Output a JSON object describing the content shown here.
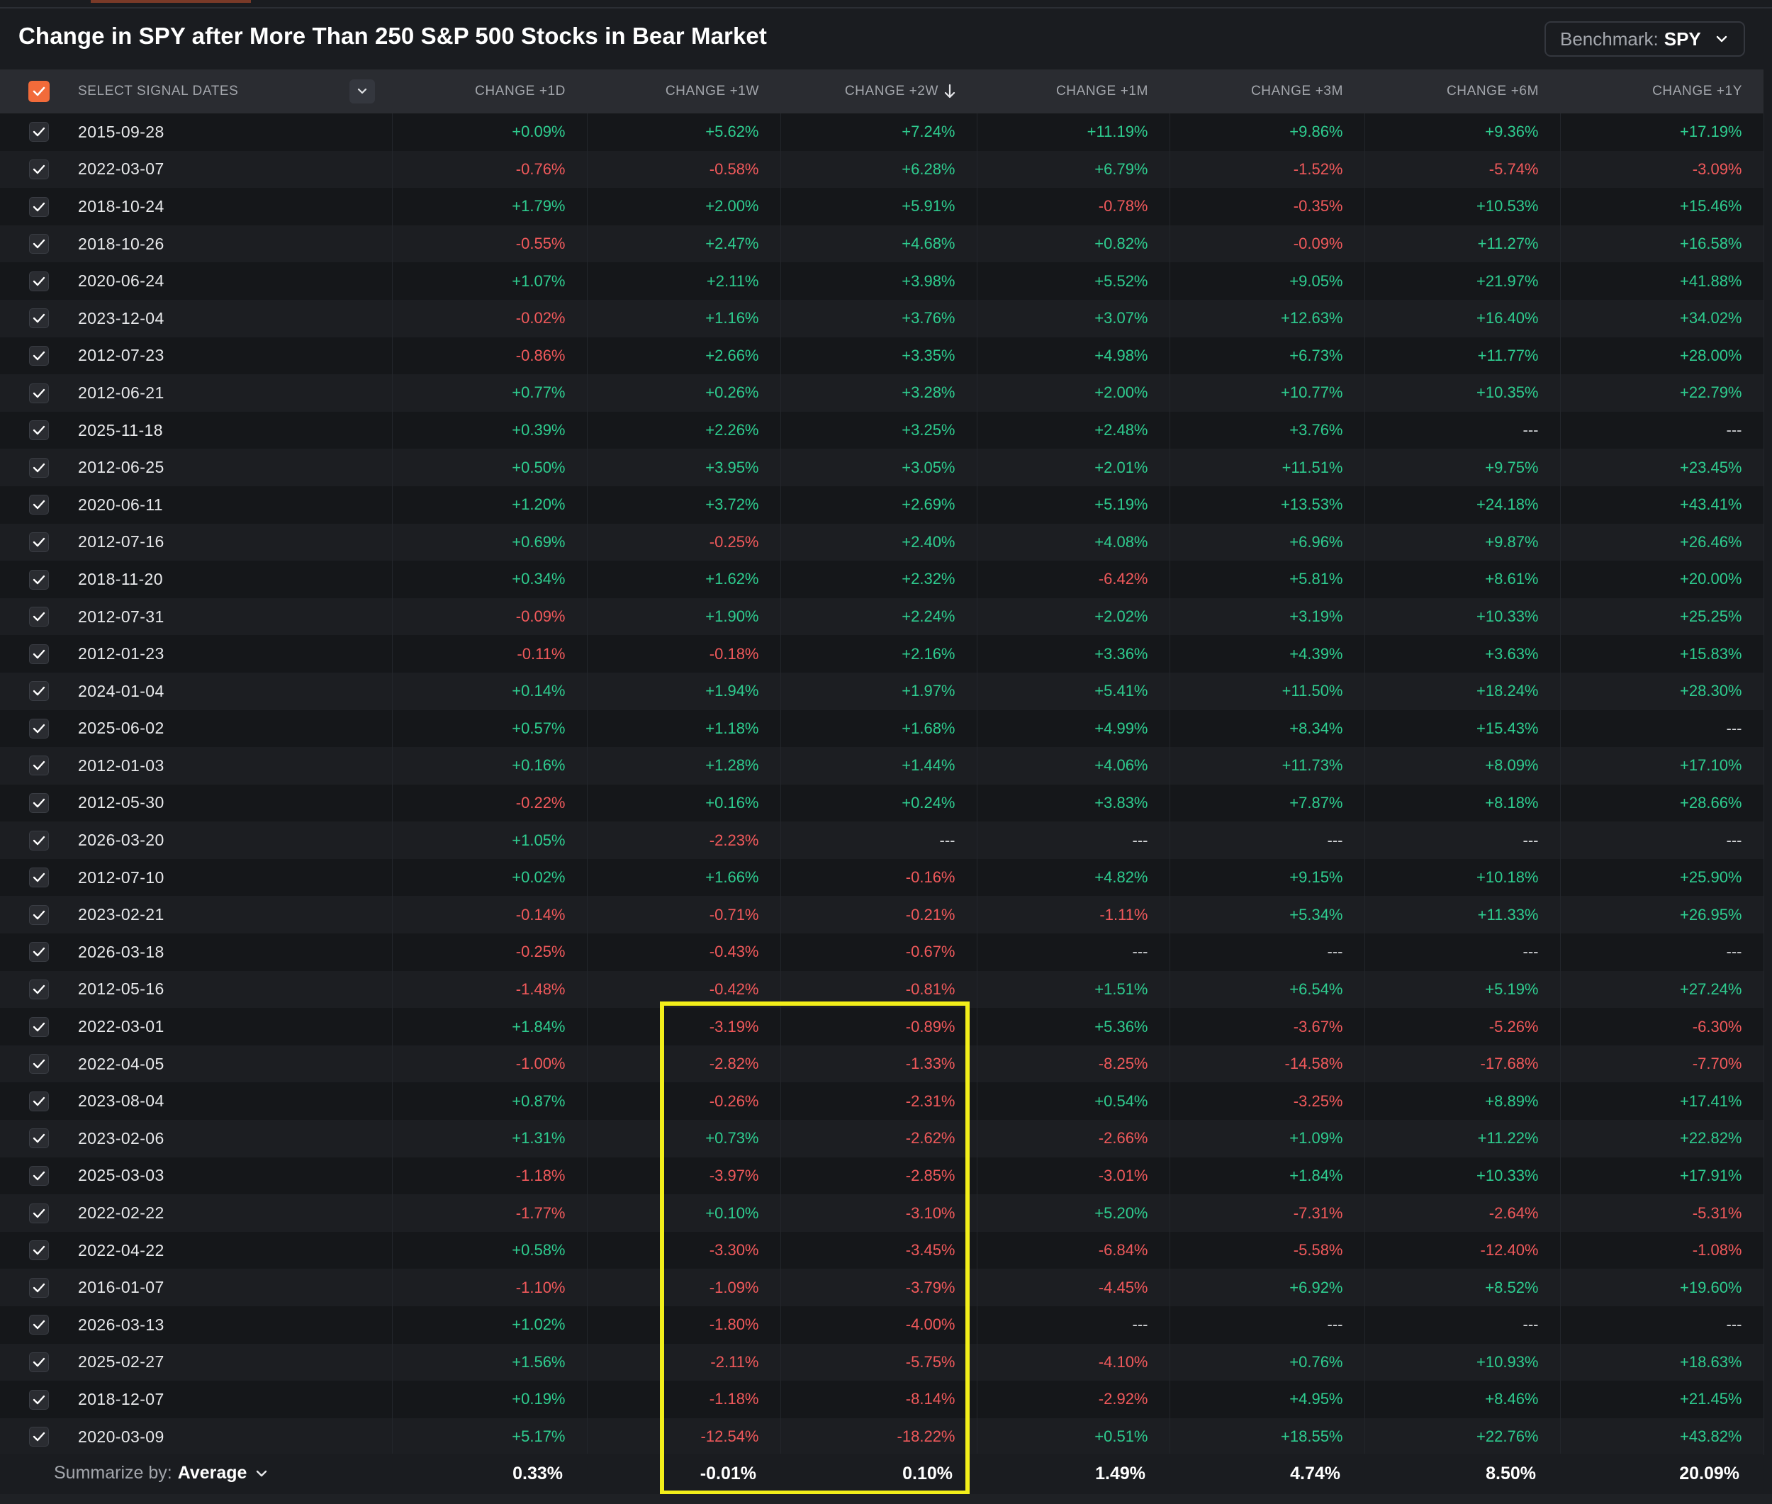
{
  "title": "Change in SPY after More Than 250 S&P 500 Stocks in Bear Market",
  "benchmark": {
    "label": "Benchmark:",
    "value": "SPY"
  },
  "columns": {
    "date": "SELECT SIGNAL DATES",
    "d1": "CHANGE +1D",
    "w1": "CHANGE +1W",
    "w2": "CHANGE +2W",
    "m1": "CHANGE +1M",
    "m3": "CHANGE +3M",
    "m6": "CHANGE +6M",
    "y1": "CHANGE +1Y"
  },
  "sorted_column": "CHANGE +2W",
  "rows": [
    {
      "date": "2015-09-28",
      "v": [
        "+0.09%",
        "+5.62%",
        "+7.24%",
        "+11.19%",
        "+9.86%",
        "+9.36%",
        "+17.19%"
      ]
    },
    {
      "date": "2022-03-07",
      "v": [
        "-0.76%",
        "-0.58%",
        "+6.28%",
        "+6.79%",
        "-1.52%",
        "-5.74%",
        "-3.09%"
      ]
    },
    {
      "date": "2018-10-24",
      "v": [
        "+1.79%",
        "+2.00%",
        "+5.91%",
        "-0.78%",
        "-0.35%",
        "+10.53%",
        "+15.46%"
      ]
    },
    {
      "date": "2018-10-26",
      "v": [
        "-0.55%",
        "+2.47%",
        "+4.68%",
        "+0.82%",
        "-0.09%",
        "+11.27%",
        "+16.58%"
      ]
    },
    {
      "date": "2020-06-24",
      "v": [
        "+1.07%",
        "+2.11%",
        "+3.98%",
        "+5.52%",
        "+9.05%",
        "+21.97%",
        "+41.88%"
      ]
    },
    {
      "date": "2023-12-04",
      "v": [
        "-0.02%",
        "+1.16%",
        "+3.76%",
        "+3.07%",
        "+12.63%",
        "+16.40%",
        "+34.02%"
      ]
    },
    {
      "date": "2012-07-23",
      "v": [
        "-0.86%",
        "+2.66%",
        "+3.35%",
        "+4.98%",
        "+6.73%",
        "+11.77%",
        "+28.00%"
      ]
    },
    {
      "date": "2012-06-21",
      "v": [
        "+0.77%",
        "+0.26%",
        "+3.28%",
        "+2.00%",
        "+10.77%",
        "+10.35%",
        "+22.79%"
      ]
    },
    {
      "date": "2025-11-18",
      "v": [
        "+0.39%",
        "+2.26%",
        "+3.25%",
        "+2.48%",
        "+3.76%",
        "---",
        "---"
      ]
    },
    {
      "date": "2012-06-25",
      "v": [
        "+0.50%",
        "+3.95%",
        "+3.05%",
        "+2.01%",
        "+11.51%",
        "+9.75%",
        "+23.45%"
      ]
    },
    {
      "date": "2020-06-11",
      "v": [
        "+1.20%",
        "+3.72%",
        "+2.69%",
        "+5.19%",
        "+13.53%",
        "+24.18%",
        "+43.41%"
      ]
    },
    {
      "date": "2012-07-16",
      "v": [
        "+0.69%",
        "-0.25%",
        "+2.40%",
        "+4.08%",
        "+6.96%",
        "+9.87%",
        "+26.46%"
      ]
    },
    {
      "date": "2018-11-20",
      "v": [
        "+0.34%",
        "+1.62%",
        "+2.32%",
        "-6.42%",
        "+5.81%",
        "+8.61%",
        "+20.00%"
      ]
    },
    {
      "date": "2012-07-31",
      "v": [
        "-0.09%",
        "+1.90%",
        "+2.24%",
        "+2.02%",
        "+3.19%",
        "+10.33%",
        "+25.25%"
      ]
    },
    {
      "date": "2012-01-23",
      "v": [
        "-0.11%",
        "-0.18%",
        "+2.16%",
        "+3.36%",
        "+4.39%",
        "+3.63%",
        "+15.83%"
      ]
    },
    {
      "date": "2024-01-04",
      "v": [
        "+0.14%",
        "+1.94%",
        "+1.97%",
        "+5.41%",
        "+11.50%",
        "+18.24%",
        "+28.30%"
      ]
    },
    {
      "date": "2025-06-02",
      "v": [
        "+0.57%",
        "+1.18%",
        "+1.68%",
        "+4.99%",
        "+8.34%",
        "+15.43%",
        "---"
      ]
    },
    {
      "date": "2012-01-03",
      "v": [
        "+0.16%",
        "+1.28%",
        "+1.44%",
        "+4.06%",
        "+11.73%",
        "+8.09%",
        "+17.10%"
      ]
    },
    {
      "date": "2012-05-30",
      "v": [
        "-0.22%",
        "+0.16%",
        "+0.24%",
        "+3.83%",
        "+7.87%",
        "+8.18%",
        "+28.66%"
      ]
    },
    {
      "date": "2026-03-20",
      "v": [
        "+1.05%",
        "-2.23%",
        "---",
        "---",
        "---",
        "---",
        "---"
      ]
    },
    {
      "date": "2012-07-10",
      "v": [
        "+0.02%",
        "+1.66%",
        "-0.16%",
        "+4.82%",
        "+9.15%",
        "+10.18%",
        "+25.90%"
      ]
    },
    {
      "date": "2023-02-21",
      "v": [
        "-0.14%",
        "-0.71%",
        "-0.21%",
        "-1.11%",
        "+5.34%",
        "+11.33%",
        "+26.95%"
      ]
    },
    {
      "date": "2026-03-18",
      "v": [
        "-0.25%",
        "-0.43%",
        "-0.67%",
        "---",
        "---",
        "---",
        "---"
      ]
    },
    {
      "date": "2012-05-16",
      "v": [
        "-1.48%",
        "-0.42%",
        "-0.81%",
        "+1.51%",
        "+6.54%",
        "+5.19%",
        "+27.24%"
      ]
    },
    {
      "date": "2022-03-01",
      "v": [
        "+1.84%",
        "-3.19%",
        "-0.89%",
        "+5.36%",
        "-3.67%",
        "-5.26%",
        "-6.30%"
      ]
    },
    {
      "date": "2022-04-05",
      "v": [
        "-1.00%",
        "-2.82%",
        "-1.33%",
        "-8.25%",
        "-14.58%",
        "-17.68%",
        "-7.70%"
      ]
    },
    {
      "date": "2023-08-04",
      "v": [
        "+0.87%",
        "-0.26%",
        "-2.31%",
        "+0.54%",
        "-3.25%",
        "+8.89%",
        "+17.41%"
      ]
    },
    {
      "date": "2023-02-06",
      "v": [
        "+1.31%",
        "+0.73%",
        "-2.62%",
        "-2.66%",
        "+1.09%",
        "+11.22%",
        "+22.82%"
      ]
    },
    {
      "date": "2025-03-03",
      "v": [
        "-1.18%",
        "-3.97%",
        "-2.85%",
        "-3.01%",
        "+1.84%",
        "+10.33%",
        "+17.91%"
      ]
    },
    {
      "date": "2022-02-22",
      "v": [
        "-1.77%",
        "+0.10%",
        "-3.10%",
        "+5.20%",
        "-7.31%",
        "-2.64%",
        "-5.31%"
      ]
    },
    {
      "date": "2022-04-22",
      "v": [
        "+0.58%",
        "-3.30%",
        "-3.45%",
        "-6.84%",
        "-5.58%",
        "-12.40%",
        "-1.08%"
      ]
    },
    {
      "date": "2016-01-07",
      "v": [
        "-1.10%",
        "-1.09%",
        "-3.79%",
        "-4.45%",
        "+6.92%",
        "+8.52%",
        "+19.60%"
      ]
    },
    {
      "date": "2026-03-13",
      "v": [
        "+1.02%",
        "-1.80%",
        "-4.00%",
        "---",
        "---",
        "---",
        "---"
      ]
    },
    {
      "date": "2025-02-27",
      "v": [
        "+1.56%",
        "-2.11%",
        "-5.75%",
        "-4.10%",
        "+0.76%",
        "+10.93%",
        "+18.63%"
      ]
    },
    {
      "date": "2018-12-07",
      "v": [
        "+0.19%",
        "-1.18%",
        "-8.14%",
        "-2.92%",
        "+4.95%",
        "+8.46%",
        "+21.45%"
      ]
    },
    {
      "date": "2020-03-09",
      "v": [
        "+5.17%",
        "-12.54%",
        "-18.22%",
        "+0.51%",
        "+18.55%",
        "+22.76%",
        "+43.82%"
      ]
    }
  ],
  "summary": {
    "label": "Summarize by:",
    "method": "Average",
    "values": [
      "0.33%",
      "-0.01%",
      "0.10%",
      "1.49%",
      "4.74%",
      "8.50%",
      "20.09%"
    ]
  },
  "colors": {
    "positive": "#2ecc8f",
    "negative": "#f0595b",
    "accent": "#f26b3a",
    "highlight": "#f2ee1a"
  },
  "icons": {
    "master_checkbox": "checkbox-checked-icon",
    "row_checkbox": "checkmark-icon",
    "dropdown": "chevron-down-icon",
    "sort": "arrow-down-icon"
  }
}
